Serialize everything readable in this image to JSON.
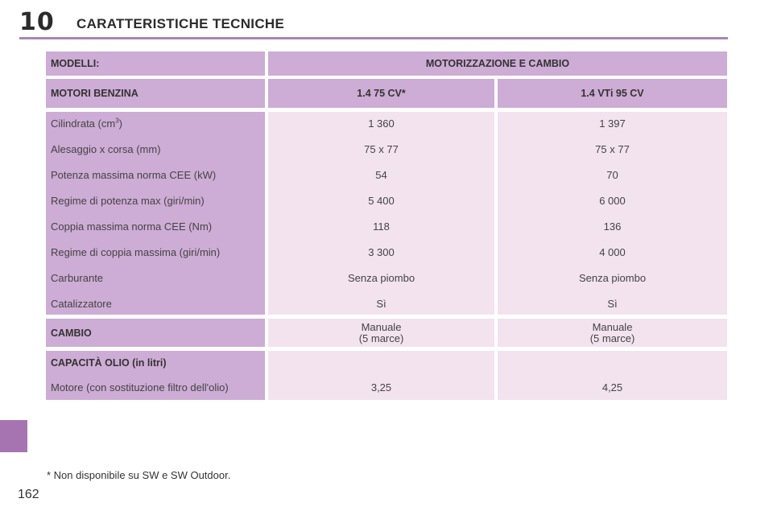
{
  "page": {
    "chapter_number": "10",
    "chapter_title": "CARATTERISTICHE TECNICHE",
    "page_number": "162",
    "footnote": "* Non disponibile su SW e SW Outdoor.",
    "accent_color": "#a774b2"
  },
  "table": {
    "models_label": "MODELLI:",
    "models_value": "MOTORIZZAZIONE E CAMBIO",
    "engine_section": "MOTORI BENZINA",
    "columns": [
      "1.4 75 CV*",
      "1.4 VTi 95 CV"
    ],
    "specs": [
      {
        "label": "Cilindrata (cm",
        "label_sup": "3",
        "label_end": ")",
        "values": [
          "1 360",
          "1 397"
        ]
      },
      {
        "label": "Alesaggio x corsa (mm)",
        "values": [
          "75 x 77",
          "75 x 77"
        ]
      },
      {
        "label": "Potenza massima norma CEE (kW)",
        "values": [
          "54",
          "70"
        ]
      },
      {
        "label": "Regime di potenza max (giri/min)",
        "values": [
          "5 400",
          "6 000"
        ]
      },
      {
        "label": "Coppia massima norma CEE (Nm)",
        "values": [
          "118",
          "136"
        ]
      },
      {
        "label": "Regime di coppia massima (giri/min)",
        "values": [
          "3 300",
          "4 000"
        ]
      },
      {
        "label": "Carburante",
        "values": [
          "Senza piombo",
          "Senza piombo"
        ]
      },
      {
        "label": "Catalizzatore",
        "values": [
          "Sì",
          "Sì"
        ]
      }
    ],
    "gearbox": {
      "label": "CAMBIO",
      "values": [
        {
          "line1": "Manuale",
          "line2": "(5 marce)"
        },
        {
          "line1": "Manuale",
          "line2": "(5 marce)"
        }
      ]
    },
    "oil": {
      "label": "CAPACITÀ OLIO (in litri)",
      "sub_label": "Motore (con sostituzione filtro dell'olio)",
      "values": [
        "3,25",
        "4,25"
      ]
    }
  }
}
